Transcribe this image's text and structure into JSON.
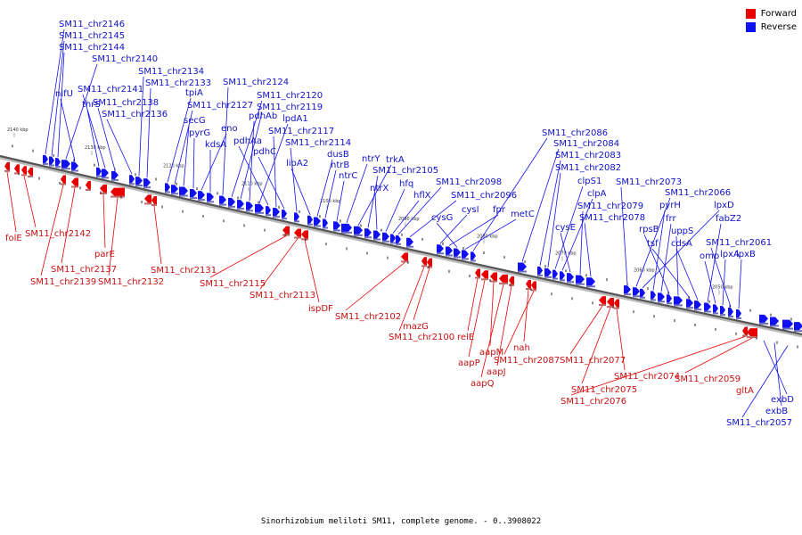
{
  "legend": {
    "forward_label": "Forward",
    "forward_color": "#e80000",
    "reverse_label": "Reverse",
    "reverse_color": "#1010f0"
  },
  "caption": "Sinorhizobium meliloti SM11, complete genome. - 0..3908022",
  "ticks": [
    "2140 kbp",
    "2130 kbp",
    "2120 kbp",
    "2110 kbp",
    "2100 kbp",
    "2090 kbp",
    "2080 kbp",
    "2070 kbp",
    "2060 kbp",
    "2050 kbp"
  ],
  "reverse_labels": [
    "SM11_chr2146",
    "SM11_chr2145",
    "SM11_chr2144",
    "SM11_chr2140",
    "nifU",
    "thrS",
    "SM11_chr2141",
    "SM11_chr2138",
    "SM11_chr2136",
    "SM11_chr2134",
    "SM11_chr2133",
    "tpiA",
    "SM11_chr2127",
    "secG",
    "pyrG",
    "eno",
    "kdsA",
    "SM11_chr2124",
    "SM11_chr2120",
    "SM11_chr2119",
    "pdhAb",
    "lpdA1",
    "pdhAa",
    "SM11_chr2117",
    "pdhC",
    "SM11_chr2114",
    "lipA2",
    "dusB",
    "ntrB",
    "ntrC",
    "ntrY",
    "trkA",
    "SM11_chr2105",
    "ntrX",
    "hfq",
    "hflX",
    "SM11_chr2098",
    "SM11_chr2096",
    "cysI",
    "fpr",
    "cysG",
    "metC",
    "SM11_chr2086",
    "SM11_chr2084",
    "SM11_chr2083",
    "SM11_chr2082",
    "clpS1",
    "clpA",
    "cysE",
    "SM11_chr2079",
    "SM11_chr2078",
    "SM11_chr2073",
    "SM11_chr2066",
    "lpxD",
    "pyrH",
    "frr",
    "rpsB",
    "uppS",
    "tsf",
    "cdsA",
    "fabZ2",
    "omp",
    "lpxA",
    "SM11_chr2061",
    "lpxB",
    "exbD",
    "exbB",
    "SM11_chr2057"
  ],
  "forward_labels": [
    "folE",
    "SM11_chr2142",
    "SM11_chr2137",
    "parE",
    "SM11_chr2139",
    "SM11_chr2132",
    "SM11_chr2131",
    "SM11_chr2115",
    "SM11_chr2113",
    "ispDF",
    "SM11_chr2102",
    "mazG",
    "SM11_chr2100",
    "relE",
    "aapM",
    "aapP",
    "aapJ",
    "aapQ",
    "SM11_chr2087",
    "nah",
    "SM11_chr2077",
    "SM11_chr2074",
    "SM11_chr2075",
    "SM11_chr2076",
    "SM11_chr2059",
    "gltA"
  ]
}
